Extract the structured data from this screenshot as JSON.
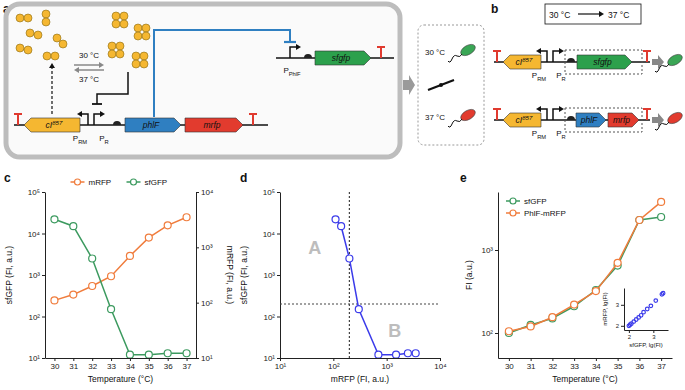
{
  "diagram": {
    "panel_a": "a",
    "panel_b": "b",
    "temperature_low": "30 °C",
    "temperature_high": "37 °C",
    "gene_ci": [
      "cI",
      "857"
    ],
    "promoter_rm": [
      "P",
      "RM"
    ],
    "promoter_r": [
      "P",
      "R"
    ],
    "promoter_phlf": [
      "P",
      "PhlF"
    ],
    "gene_phlf": "phlF",
    "gene_mrfp": "mrfp",
    "gene_sfgfp": "sfgfp"
  },
  "chart_data": [
    {
      "type": "line",
      "title": "c",
      "xlabel": "Temperature (°C)",
      "ylabel": "sfGFP (FI, a.u.)",
      "y2label": "mRFP (FI, a.u.)",
      "log": "y",
      "legend": "top",
      "x": [
        30,
        31,
        32,
        33,
        34,
        35,
        36,
        37
      ],
      "xlim": [
        29.5,
        37.5
      ],
      "xticks": [
        30,
        31,
        32,
        33,
        34,
        35,
        36,
        37
      ],
      "ylim": [
        10,
        100000
      ],
      "yticks": [
        {
          "value": 10,
          "label": "10¹"
        },
        {
          "value": 100,
          "label": "10²"
        },
        {
          "value": 1000,
          "label": "10³"
        },
        {
          "value": 10000,
          "label": "10⁴"
        },
        {
          "value": 100000,
          "label": "10⁵"
        }
      ],
      "y2lim": [
        10,
        10000
      ],
      "y2ticks": [
        {
          "value": 10,
          "label": "10¹"
        },
        {
          "value": 100,
          "label": "10²"
        },
        {
          "value": 1000,
          "label": "10³"
        },
        {
          "value": 10000,
          "label": "10⁴"
        }
      ],
      "series": [
        {
          "name": "mRFP",
          "color": "#f07c3c",
          "axis": "y2",
          "marker": "open-circle",
          "values": [
            110,
            140,
            200,
            300,
            700,
            1500,
            2500,
            3500
          ]
        },
        {
          "name": "sfGFP",
          "color": "#3c9a5f",
          "axis": "y",
          "marker": "open-circle",
          "values": [
            22000,
            15000,
            2500,
            150,
            12,
            12,
            13,
            13
          ]
        }
      ]
    },
    {
      "type": "line",
      "title": "d",
      "xlabel": "mRFP (FI, a.u.)",
      "ylabel": "sfGFP (FI, a.u.)",
      "log": true,
      "color": "#3b3bea",
      "marker": "open-circle",
      "x": [
        110,
        140,
        200,
        300,
        700,
        1500,
        2500,
        3500
      ],
      "values": [
        22000,
        15000,
        2500,
        150,
        12,
        12,
        13,
        13
      ],
      "xlim": [
        10,
        10000
      ],
      "xticks": [
        {
          "value": 10,
          "label": "10¹"
        },
        {
          "value": 100,
          "label": "10²"
        },
        {
          "value": 1000,
          "label": "10³"
        },
        {
          "value": 10000,
          "label": "10⁴"
        }
      ],
      "ylim": [
        10,
        100000
      ],
      "yticks": [
        {
          "value": 10,
          "label": "10¹"
        },
        {
          "value": 100,
          "label": "10²"
        },
        {
          "value": 1000,
          "label": "10³"
        },
        {
          "value": 10000,
          "label": "10⁴"
        },
        {
          "value": 100000,
          "label": "10⁵"
        }
      ],
      "thresholds": {
        "x": 200,
        "y": 200
      },
      "annotations": [
        "A",
        "B"
      ]
    },
    {
      "type": "line",
      "title": "e",
      "xlabel": "Temperature (°C)",
      "ylabel": "FI (a.u.)",
      "log": "y",
      "legend": "top-left",
      "x": [
        30,
        31,
        32,
        33,
        34,
        35,
        36,
        37
      ],
      "xlim": [
        29.5,
        37.5
      ],
      "xticks": [
        30,
        31,
        32,
        33,
        34,
        35,
        36,
        37
      ],
      "ylim": [
        50,
        5000
      ],
      "yticks": [
        {
          "value": 100,
          "label": "10²"
        },
        {
          "value": 1000,
          "label": "10³"
        }
      ],
      "series": [
        {
          "name": "sfGFP",
          "color": "#3c9a5f",
          "marker": "open-circle",
          "values": [
            100,
            125,
            150,
            210,
            330,
            650,
            2300,
            2500
          ]
        },
        {
          "name": "PhlF-mRFP",
          "color": "#f07c3c",
          "marker": "open-circle",
          "values": [
            105,
            120,
            155,
            220,
            320,
            700,
            2300,
            3800
          ]
        }
      ]
    },
    {
      "type": "scatter",
      "xlabel": "sfGFP, lg(FI)",
      "ylabel": "mRFP, lg(FI)",
      "color": "#3b3bea",
      "marker": "open-circle",
      "x": [
        2.0,
        2.05,
        2.1,
        2.2,
        2.3,
        2.4,
        2.5,
        2.6,
        2.75,
        2.9,
        3.1,
        3.35,
        3.4
      ],
      "values": [
        2.0,
        2.05,
        2.1,
        2.2,
        2.3,
        2.4,
        2.5,
        2.65,
        2.8,
        2.95,
        3.2,
        3.5,
        3.55
      ],
      "xlim": [
        1.8,
        3.6
      ],
      "xticks": [
        2,
        3
      ],
      "ylim": [
        1.8,
        3.8
      ],
      "yticks": [
        2,
        3
      ]
    }
  ]
}
